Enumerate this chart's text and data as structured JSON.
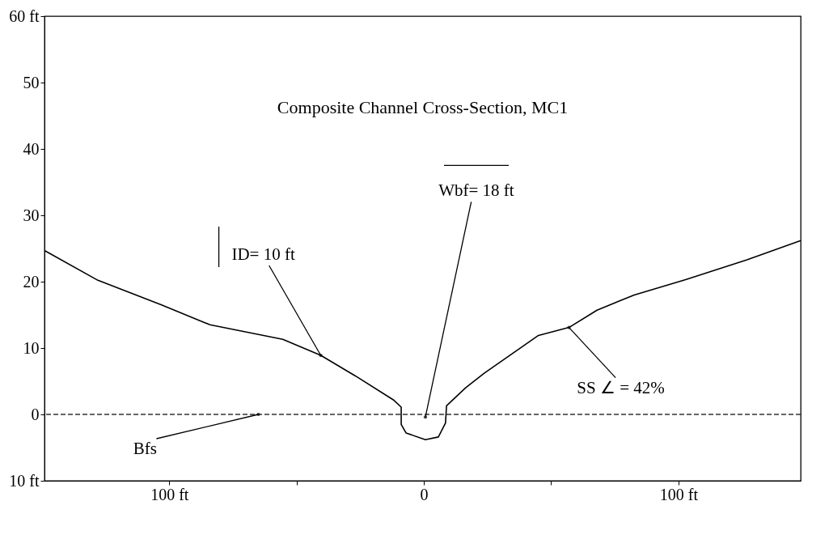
{
  "chart_data": {
    "type": "line",
    "title": "Composite Channel Cross-Section, MC1",
    "x": [
      -149,
      -128,
      -103,
      -84,
      -55.4,
      -40.5,
      -26.9,
      -12,
      -8.9,
      -8.9,
      -7,
      0.6,
      5.7,
      8.5,
      8.9,
      16.4,
      23.7,
      45,
      57,
      68,
      82.6,
      102.8,
      126.9,
      148
    ],
    "series": [
      {
        "color": "#000000",
        "values": [
          24.7,
          20.2,
          16.5,
          13.5,
          11.3,
          8.9,
          5.8,
          2.2,
          1.1,
          -1.5,
          -2.8,
          -3.8,
          -3.4,
          -1.3,
          1.3,
          4.0,
          6.2,
          11.9,
          13.1,
          15.7,
          18,
          20.3,
          23.3,
          26.2
        ]
      }
    ],
    "xlim": [
      -149,
      148
    ],
    "ylim": [
      -10,
      60
    ],
    "xticks": [
      {
        "value": -100,
        "label": "100 ft"
      },
      {
        "value": -50,
        "label": null
      },
      0,
      {
        "value": 50,
        "label": null
      },
      {
        "value": 100,
        "label": "100 ft"
      }
    ],
    "yticks": [
      {
        "value": -10,
        "label": "10 ft"
      },
      0,
      10,
      20,
      30,
      40,
      50,
      {
        "value": 60,
        "label": "60 ft"
      }
    ],
    "ref_lines": [
      {
        "axis": "y",
        "value": 0,
        "color": "#333333",
        "line_style": "dashed"
      }
    ],
    "annotations": [
      {
        "text": "ID= 10 ft",
        "x": -40.5,
        "y": 8.9
      },
      {
        "text": "Wbf= 18 ft",
        "x": 0.6,
        "y": -0.4
      },
      {
        "text": "Bfs",
        "x": -65,
        "y": 0
      },
      {
        "text": "SS ∠ = 42%",
        "x": 57,
        "y": 13.1
      }
    ],
    "grid": false,
    "marker": "none",
    "line_style": "solid"
  }
}
